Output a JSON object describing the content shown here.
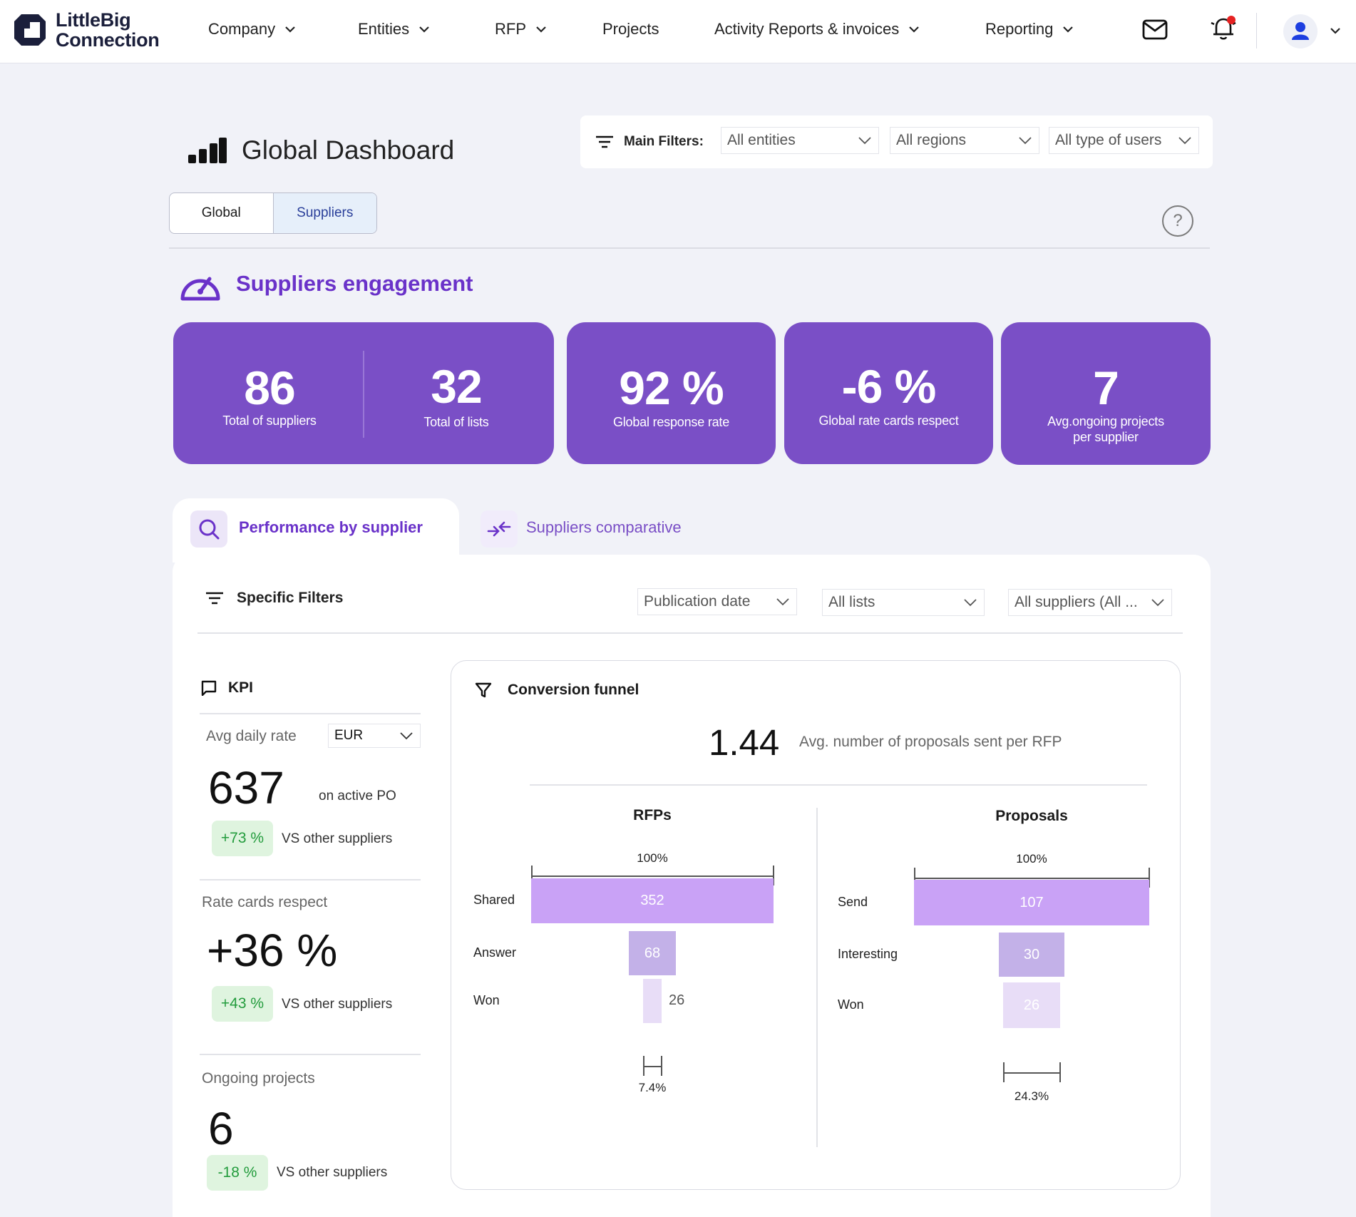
{
  "nav": {
    "logo_line1": "LittleBig",
    "logo_line2": "Connection",
    "items": [
      "Company",
      "Entities",
      "RFP",
      "Projects",
      "Activity Reports & invoices",
      "Reporting"
    ]
  },
  "header": {
    "title": "Global Dashboard",
    "main_filters_label": "Main Filters:",
    "filters": [
      "All entities",
      "All regions",
      "All type of users"
    ],
    "tabs": [
      "Global",
      "Suppliers"
    ],
    "active_tab": "Suppliers",
    "help": "?"
  },
  "engagement": {
    "title": "Suppliers engagement",
    "cards": [
      {
        "value": "86",
        "label": "Total of suppliers"
      },
      {
        "value": "32",
        "label": "Total of lists"
      },
      {
        "value": "92 %",
        "label": "Global response rate"
      },
      {
        "value": "-6 %",
        "label": "Global rate cards respect"
      },
      {
        "value": "7",
        "label": "Avg.ongoing projects per supplier"
      }
    ]
  },
  "section_tabs": {
    "performance": "Performance by supplier",
    "comparative": "Suppliers comparative"
  },
  "specific_filters": {
    "label": "Specific Filters",
    "filters": [
      "Publication date",
      "All lists",
      "All suppliers (All ..."
    ]
  },
  "kpi": {
    "title": "KPI",
    "avg_daily_rate": {
      "label": "Avg daily rate",
      "currency": "EUR",
      "value": "637",
      "suffix": "on active PO",
      "badge": "+73 %",
      "vs": "VS other suppliers"
    },
    "rate_cards": {
      "label": "Rate cards respect",
      "value": "+36 %",
      "badge": "+43 %",
      "vs": "VS other suppliers"
    },
    "ongoing": {
      "label": "Ongoing projects",
      "value": "6",
      "badge": "-18 %",
      "vs": "VS other suppliers"
    }
  },
  "funnel": {
    "title": "Conversion funnel",
    "avg_value": "1.44",
    "avg_label": "Avg. number of proposals sent per RFP",
    "colors": {
      "stage1": "#c9a2f6",
      "stage2": "#c3b1e8",
      "stage3": "#e8ddf7",
      "accent": "#7a4fc6"
    },
    "chart_data": [
      {
        "type": "bar",
        "title": "RFPs",
        "top_label": "100%",
        "categories": [
          "Shared",
          "Answer",
          "Won"
        ],
        "values": [
          352,
          68,
          26
        ],
        "bottom_label": "7.4%"
      },
      {
        "type": "bar",
        "title": "Proposals",
        "top_label": "100%",
        "categories": [
          "Send",
          "Interesting",
          "Won"
        ],
        "values": [
          107,
          30,
          26
        ],
        "bottom_label": "24.3%"
      }
    ]
  }
}
